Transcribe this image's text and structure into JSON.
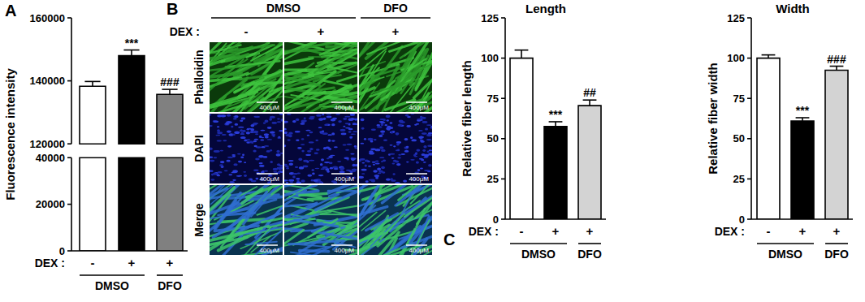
{
  "panel_labels": [
    "A",
    "B",
    "C"
  ],
  "chart_data": [
    {
      "type": "bar",
      "ylabel": "Fluorescence intensity",
      "xlabel": "DEX :",
      "categories": [
        "-",
        "+",
        "+"
      ],
      "groups": [
        "DMSO",
        "DMSO",
        "DFO"
      ],
      "values": [
        138300,
        148000,
        135700
      ],
      "errors": [
        1500,
        1800,
        1600
      ],
      "annotations": [
        null,
        "***",
        "###"
      ],
      "colors": [
        "#ffffff",
        "#000000",
        "#808080"
      ],
      "ylim": [
        0,
        160000
      ],
      "ybreak": [
        40000,
        120000
      ],
      "yticks": [
        0,
        20000,
        40000,
        120000,
        140000,
        160000
      ]
    },
    {
      "type": "bar",
      "title": "Length",
      "ylabel": "Relative fiber length",
      "xlabel": "DEX :",
      "categories": [
        "-",
        "+",
        "+"
      ],
      "groups": [
        "DMSO",
        "DMSO",
        "DFO"
      ],
      "values": [
        100,
        57.5,
        70.5
      ],
      "errors": [
        5,
        3,
        3.5
      ],
      "annotations": [
        null,
        "***",
        "##"
      ],
      "colors": [
        "#ffffff",
        "#000000",
        "#d3d3d3"
      ],
      "ylim": [
        0,
        125
      ],
      "yticks": [
        0,
        25,
        50,
        75,
        100,
        125
      ]
    },
    {
      "type": "bar",
      "title": "Width",
      "ylabel": "Relative fiber width",
      "xlabel": "DEX :",
      "categories": [
        "-",
        "+",
        "+"
      ],
      "groups": [
        "DMSO",
        "DMSO",
        "DFO"
      ],
      "values": [
        100,
        61,
        92.5
      ],
      "errors": [
        2,
        2,
        2.5
      ],
      "annotations": [
        null,
        "***",
        "###"
      ],
      "colors": [
        "#ffffff",
        "#000000",
        "#d3d3d3"
      ],
      "ylim": [
        0,
        125
      ],
      "yticks": [
        0,
        25,
        50,
        75,
        100,
        125
      ]
    }
  ],
  "image_panel": {
    "xlabel": "DEX :",
    "categories": [
      "-",
      "+",
      "+"
    ],
    "groups": [
      "DMSO",
      "DMSO",
      "DFO"
    ],
    "rows": [
      "Phalloidin",
      "DAPI",
      "Merge"
    ],
    "scale_bar": "400μM"
  }
}
